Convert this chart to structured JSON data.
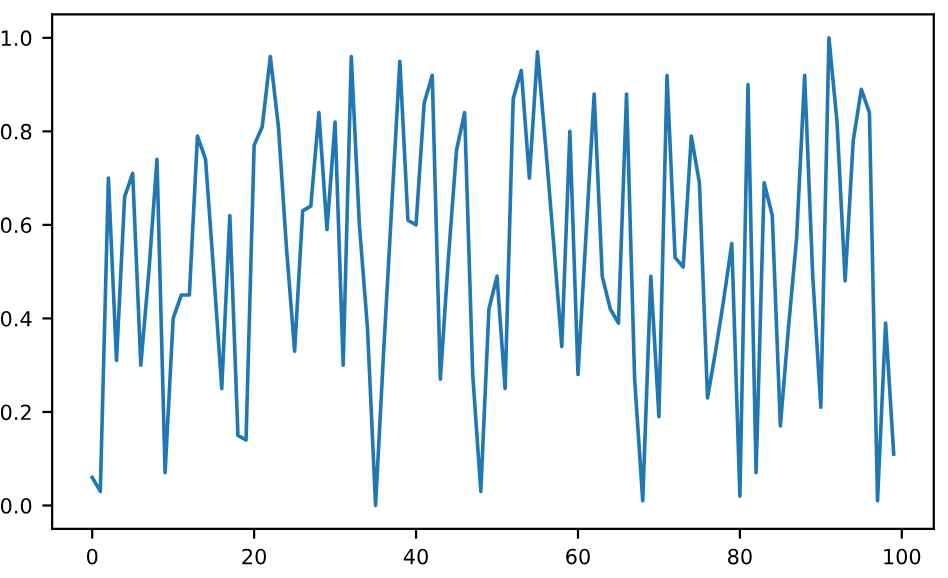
{
  "chart_data": {
    "type": "line",
    "color": "#1f77b4",
    "x": [
      0,
      1,
      2,
      3,
      4,
      5,
      6,
      7,
      8,
      9,
      10,
      11,
      12,
      13,
      14,
      15,
      16,
      17,
      18,
      19,
      20,
      21,
      22,
      23,
      24,
      25,
      26,
      27,
      28,
      29,
      30,
      31,
      32,
      33,
      34,
      35,
      36,
      37,
      38,
      39,
      40,
      41,
      42,
      43,
      44,
      45,
      46,
      47,
      48,
      49,
      50,
      51,
      52,
      53,
      54,
      55,
      56,
      57,
      58,
      59,
      60,
      61,
      62,
      63,
      64,
      65,
      66,
      67,
      68,
      69,
      70,
      71,
      72,
      73,
      74,
      75,
      76,
      77,
      78,
      79,
      80,
      81,
      82,
      83,
      84,
      85,
      86,
      87,
      88,
      89,
      90,
      91,
      92,
      93,
      94,
      95,
      96,
      97,
      98,
      99
    ],
    "values": [
      0.06,
      0.03,
      0.7,
      0.31,
      0.66,
      0.71,
      0.3,
      0.5,
      0.74,
      0.07,
      0.4,
      0.45,
      0.45,
      0.79,
      0.74,
      0.5,
      0.25,
      0.62,
      0.15,
      0.14,
      0.77,
      0.81,
      0.96,
      0.81,
      0.55,
      0.33,
      0.63,
      0.64,
      0.84,
      0.59,
      0.82,
      0.3,
      0.96,
      0.6,
      0.38,
      0.0,
      0.33,
      0.64,
      0.95,
      0.61,
      0.6,
      0.86,
      0.92,
      0.27,
      0.53,
      0.76,
      0.84,
      0.28,
      0.03,
      0.42,
      0.49,
      0.25,
      0.87,
      0.93,
      0.7,
      0.97,
      0.77,
      0.56,
      0.34,
      0.8,
      0.28,
      0.58,
      0.88,
      0.49,
      0.42,
      0.39,
      0.88,
      0.27,
      0.01,
      0.49,
      0.19,
      0.92,
      0.53,
      0.51,
      0.79,
      0.69,
      0.23,
      0.33,
      0.44,
      0.56,
      0.02,
      0.9,
      0.07,
      0.69,
      0.62,
      0.17,
      0.38,
      0.57,
      0.92,
      0.49,
      0.21,
      1.0,
      0.82,
      0.48,
      0.78,
      0.89,
      0.84,
      0.01,
      0.39,
      0.11
    ],
    "xlim": [
      -4.95,
      103.95
    ],
    "ylim": [
      -0.05,
      1.05
    ],
    "xticks": [
      0,
      20,
      40,
      60,
      80,
      100
    ],
    "yticks": [
      {
        "value": 0,
        "label": "0.0"
      },
      {
        "value": 0.2,
        "label": "0.2"
      },
      {
        "value": 0.4,
        "label": "0.4"
      },
      {
        "value": 0.6,
        "label": "0.6"
      },
      {
        "value": 0.8,
        "label": "0.8"
      },
      {
        "value": 1,
        "label": "1.0"
      }
    ],
    "grid": false,
    "legend": false,
    "marker": "none",
    "line_style": "solid"
  }
}
